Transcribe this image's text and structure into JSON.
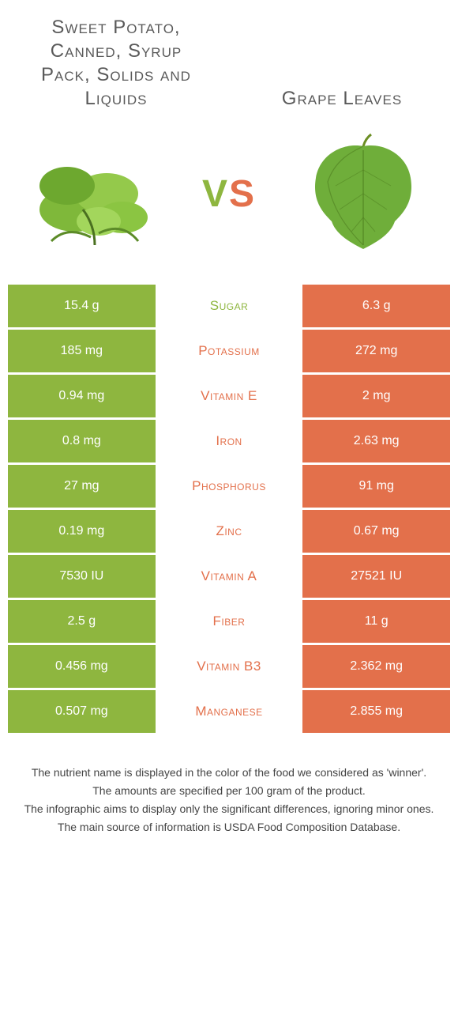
{
  "colors": {
    "left": "#8eb63f",
    "right": "#e3704b",
    "bg": "#ffffff",
    "title": "#5a5a5a"
  },
  "left_food": {
    "title": "Sweet Potato, Canned, Syrup Pack, Solids and Liquids"
  },
  "right_food": {
    "title": "Grape Leaves"
  },
  "vs": {
    "v": "V",
    "s": "S"
  },
  "rows": [
    {
      "left": "15.4 g",
      "label": "Sugar",
      "right": "6.3 g",
      "winner": "left"
    },
    {
      "left": "185 mg",
      "label": "Potassium",
      "right": "272 mg",
      "winner": "right"
    },
    {
      "left": "0.94 mg",
      "label": "Vitamin E",
      "right": "2 mg",
      "winner": "right"
    },
    {
      "left": "0.8 mg",
      "label": "Iron",
      "right": "2.63 mg",
      "winner": "right"
    },
    {
      "left": "27 mg",
      "label": "Phosphorus",
      "right": "91 mg",
      "winner": "right"
    },
    {
      "left": "0.19 mg",
      "label": "Zinc",
      "right": "0.67 mg",
      "winner": "right"
    },
    {
      "left": "7530 IU",
      "label": "Vitamin A",
      "right": "27521 IU",
      "winner": "right"
    },
    {
      "left": "2.5 g",
      "label": "Fiber",
      "right": "11 g",
      "winner": "right"
    },
    {
      "left": "0.456 mg",
      "label": "Vitamin B3",
      "right": "2.362 mg",
      "winner": "right"
    },
    {
      "left": "0.507 mg",
      "label": "Manganese",
      "right": "2.855 mg",
      "winner": "right"
    }
  ],
  "notes": [
    "The nutrient name is displayed in the color of the food we considered as 'winner'.",
    "The amounts are specified per 100 gram of the product.",
    "The infographic aims to display only the significant differences, ignoring minor ones.",
    "The main source of information is USDA Food Composition Database."
  ]
}
